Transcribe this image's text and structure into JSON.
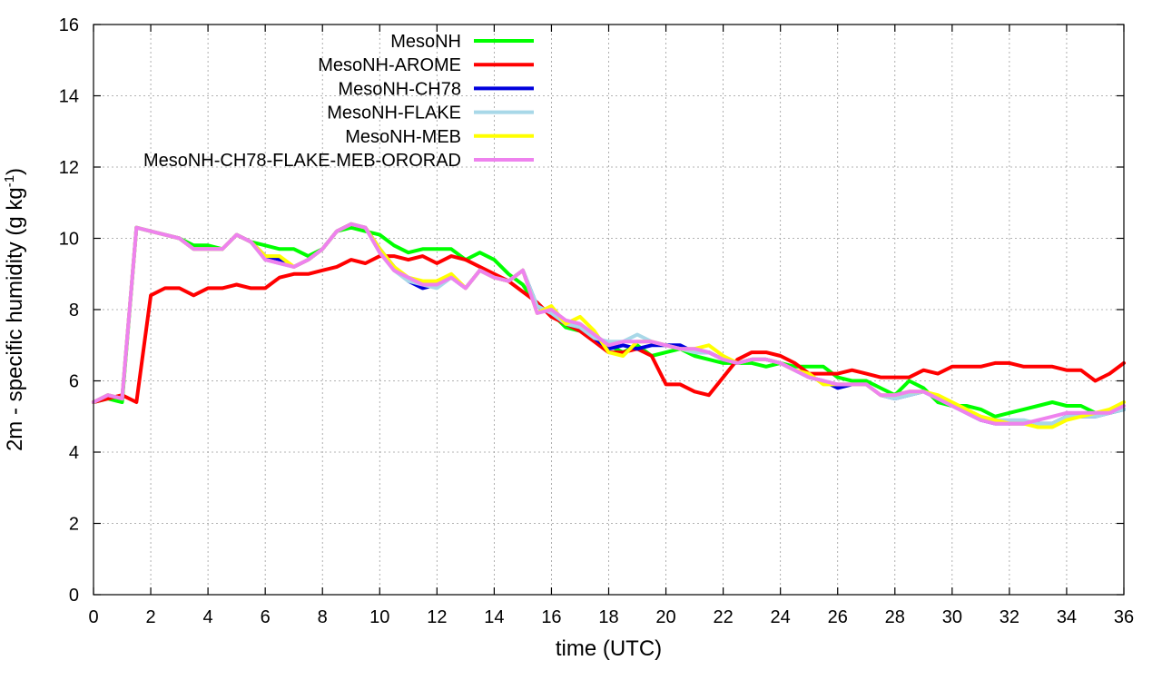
{
  "chart_data": {
    "type": "line",
    "xlabel": "time (UTC)",
    "ylabel": "2m - specific humidity (g kg",
    "ylabel_sup": "-1",
    "ylabel_close": ")",
    "xlim": [
      0,
      36
    ],
    "ylim": [
      0,
      16
    ],
    "x_ticks": [
      0,
      2,
      4,
      6,
      8,
      10,
      12,
      14,
      16,
      18,
      20,
      22,
      24,
      26,
      28,
      30,
      32,
      34,
      36
    ],
    "y_ticks": [
      0,
      2,
      4,
      6,
      8,
      10,
      12,
      14,
      16
    ],
    "grid": true,
    "legend_position": "top-left",
    "x": [
      0,
      0.5,
      1,
      1.5,
      2,
      2.5,
      3,
      3.5,
      4,
      4.5,
      5,
      5.5,
      6,
      6.5,
      7,
      7.5,
      8,
      8.5,
      9,
      9.5,
      10,
      10.5,
      11,
      11.5,
      12,
      12.5,
      13,
      13.5,
      14,
      14.5,
      15,
      15.5,
      16,
      16.5,
      17,
      17.5,
      18,
      18.5,
      19,
      19.5,
      20,
      20.5,
      21,
      21.5,
      22,
      22.5,
      23,
      23.5,
      24,
      24.5,
      25,
      25.5,
      26,
      26.5,
      27,
      27.5,
      28,
      28.5,
      29,
      29.5,
      30,
      30.5,
      31,
      31.5,
      32,
      32.5,
      33,
      33.5,
      34,
      34.5,
      35,
      35.5,
      36
    ],
    "series": [
      {
        "name": "MesoNH",
        "color": "#00ff00",
        "values": [
          5.4,
          5.5,
          5.4,
          10.3,
          10.2,
          10.1,
          10.0,
          9.8,
          9.8,
          9.7,
          10.1,
          9.9,
          9.8,
          9.7,
          9.7,
          9.5,
          9.7,
          10.2,
          10.3,
          10.2,
          10.1,
          9.8,
          9.6,
          9.7,
          9.7,
          9.7,
          9.4,
          9.6,
          9.4,
          9.0,
          8.7,
          8.1,
          7.9,
          7.5,
          7.4,
          7.3,
          7.0,
          6.8,
          7.0,
          6.7,
          6.8,
          6.9,
          6.7,
          6.6,
          6.5,
          6.5,
          6.5,
          6.4,
          6.5,
          6.4,
          6.4,
          6.4,
          6.1,
          6.0,
          6.0,
          5.8,
          5.6,
          6.0,
          5.8,
          5.4,
          5.3,
          5.3,
          5.2,
          5.0,
          5.1,
          5.2,
          5.3,
          5.4,
          5.3,
          5.3,
          5.1,
          5.1,
          5.2
        ]
      },
      {
        "name": "MesoNH-AROME",
        "color": "#ff0000",
        "values": [
          5.4,
          5.5,
          5.6,
          5.4,
          8.4,
          8.6,
          8.6,
          8.4,
          8.6,
          8.6,
          8.7,
          8.6,
          8.6,
          8.9,
          9.0,
          9.0,
          9.1,
          9.2,
          9.4,
          9.3,
          9.5,
          9.5,
          9.4,
          9.5,
          9.3,
          9.5,
          9.4,
          9.2,
          9.0,
          8.8,
          8.5,
          8.2,
          7.8,
          7.6,
          7.4,
          7.1,
          6.8,
          6.8,
          6.9,
          6.7,
          5.9,
          5.9,
          5.7,
          5.6,
          6.1,
          6.6,
          6.8,
          6.8,
          6.7,
          6.5,
          6.2,
          6.2,
          6.2,
          6.3,
          6.2,
          6.1,
          6.1,
          6.1,
          6.3,
          6.2,
          6.4,
          6.4,
          6.4,
          6.5,
          6.5,
          6.4,
          6.4,
          6.4,
          6.3,
          6.3,
          6.0,
          6.2,
          6.5
        ]
      },
      {
        "name": "MesoNH-CH78",
        "color": "#0000dd",
        "values": [
          5.4,
          5.6,
          5.5,
          10.3,
          10.2,
          10.1,
          10.0,
          9.7,
          9.7,
          9.7,
          10.1,
          9.9,
          9.5,
          9.4,
          9.2,
          9.4,
          9.7,
          10.2,
          10.4,
          10.3,
          9.7,
          9.2,
          8.8,
          8.6,
          8.7,
          8.9,
          8.6,
          9.1,
          8.9,
          8.8,
          9.1,
          8.1,
          7.9,
          7.6,
          7.5,
          7.2,
          6.9,
          7.0,
          6.9,
          7.0,
          7.0,
          7.0,
          6.8,
          6.8,
          6.6,
          6.5,
          6.6,
          6.6,
          6.5,
          6.3,
          6.1,
          6.0,
          5.8,
          5.9,
          5.9,
          5.6,
          5.5,
          5.6,
          5.7,
          5.5,
          5.3,
          5.1,
          4.9,
          4.8,
          4.8,
          4.8,
          4.8,
          4.8,
          5.0,
          5.0,
          5.0,
          5.1,
          5.2
        ]
      },
      {
        "name": "MesoNH-FLAKE",
        "color": "#a8d8e8",
        "values": [
          5.4,
          5.6,
          5.5,
          10.3,
          10.2,
          10.1,
          10.0,
          9.7,
          9.7,
          9.7,
          10.1,
          9.9,
          9.4,
          9.3,
          9.2,
          9.4,
          9.7,
          10.2,
          10.4,
          10.3,
          9.6,
          9.1,
          8.8,
          8.7,
          8.6,
          8.9,
          8.6,
          9.1,
          8.9,
          8.8,
          9.1,
          8.1,
          7.9,
          7.6,
          7.5,
          7.2,
          7.1,
          7.1,
          7.3,
          7.1,
          7.0,
          6.9,
          6.8,
          6.8,
          6.6,
          6.5,
          6.6,
          6.6,
          6.5,
          6.3,
          6.1,
          6.0,
          5.9,
          5.9,
          5.9,
          5.6,
          5.5,
          5.6,
          5.7,
          5.5,
          5.3,
          5.1,
          5.0,
          4.9,
          4.9,
          4.9,
          4.8,
          4.8,
          5.0,
          5.0,
          5.0,
          5.1,
          5.2
        ]
      },
      {
        "name": "MesoNH-MEB",
        "color": "#ffff00",
        "values": [
          5.4,
          5.6,
          5.5,
          10.3,
          10.2,
          10.1,
          10.0,
          9.7,
          9.7,
          9.7,
          10.1,
          9.9,
          9.5,
          9.5,
          9.2,
          9.4,
          9.7,
          10.2,
          10.4,
          10.3,
          9.7,
          9.2,
          8.9,
          8.8,
          8.8,
          9.0,
          8.6,
          9.1,
          8.9,
          8.8,
          9.1,
          7.9,
          8.1,
          7.6,
          7.8,
          7.4,
          6.8,
          6.7,
          7.1,
          7.1,
          7.0,
          6.9,
          6.9,
          7.0,
          6.7,
          6.5,
          6.6,
          6.6,
          6.5,
          6.3,
          6.2,
          5.9,
          5.9,
          5.9,
          5.9,
          5.6,
          5.6,
          5.7,
          5.7,
          5.6,
          5.4,
          5.2,
          5.0,
          4.9,
          4.8,
          4.8,
          4.7,
          4.7,
          4.9,
          5.0,
          5.1,
          5.2,
          5.4
        ]
      },
      {
        "name": "MesoNH-CH78-FLAKE-MEB-ORORAD",
        "color": "#ee82ee",
        "values": [
          5.4,
          5.6,
          5.5,
          10.3,
          10.2,
          10.1,
          10.0,
          9.7,
          9.7,
          9.7,
          10.1,
          9.9,
          9.4,
          9.3,
          9.2,
          9.4,
          9.7,
          10.2,
          10.4,
          10.3,
          9.6,
          9.1,
          8.9,
          8.7,
          8.7,
          8.9,
          8.6,
          9.1,
          8.9,
          8.8,
          9.1,
          7.9,
          8.0,
          7.7,
          7.6,
          7.3,
          7.0,
          7.1,
          7.1,
          7.1,
          7.0,
          6.9,
          6.9,
          6.8,
          6.6,
          6.5,
          6.6,
          6.6,
          6.5,
          6.3,
          6.1,
          6.0,
          5.9,
          5.9,
          5.9,
          5.6,
          5.6,
          5.7,
          5.7,
          5.5,
          5.3,
          5.1,
          4.9,
          4.8,
          4.8,
          4.8,
          4.9,
          5.0,
          5.1,
          5.1,
          5.1,
          5.1,
          5.3
        ]
      }
    ]
  }
}
